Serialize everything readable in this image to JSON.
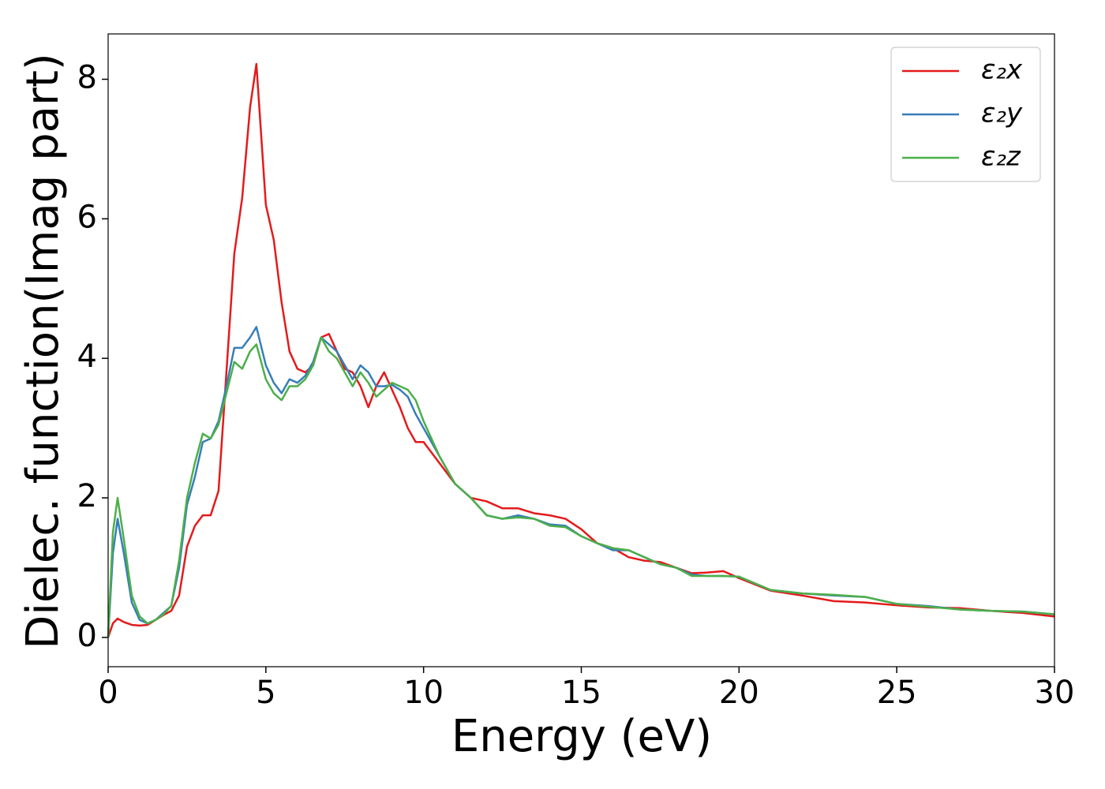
{
  "chart_data": {
    "type": "line",
    "xlabel": "Energy (eV)",
    "ylabel": "Dielec. function(Imag part)",
    "x": [
      0,
      0.15,
      0.3,
      0.5,
      0.75,
      1,
      1.25,
      1.5,
      1.75,
      2,
      2.25,
      2.5,
      2.75,
      3,
      3.25,
      3.5,
      3.75,
      4,
      4.25,
      4.5,
      4.7,
      5,
      5.25,
      5.5,
      5.75,
      6,
      6.25,
      6.5,
      6.75,
      7,
      7.25,
      7.5,
      7.75,
      8,
      8.25,
      8.5,
      8.75,
      9,
      9.25,
      9.5,
      9.75,
      10,
      10.5,
      11,
      11.5,
      12,
      12.5,
      13,
      13.5,
      14,
      14.5,
      15,
      15.5,
      16,
      16.5,
      17,
      17.5,
      18,
      18.5,
      19,
      19.5,
      20,
      21,
      22,
      23,
      24,
      25,
      26,
      27,
      28,
      29,
      30
    ],
    "series": [
      {
        "name": "ε₂x",
        "color": "#e41a1c",
        "values": [
          0,
          0.2,
          0.27,
          0.22,
          0.18,
          0.17,
          0.18,
          0.25,
          0.32,
          0.38,
          0.6,
          1.3,
          1.6,
          1.75,
          1.75,
          2.1,
          3.8,
          5.5,
          6.3,
          7.6,
          8.22,
          6.2,
          5.7,
          4.8,
          4.1,
          3.85,
          3.8,
          3.9,
          4.3,
          4.35,
          4.1,
          3.85,
          3.8,
          3.6,
          3.3,
          3.6,
          3.8,
          3.55,
          3.3,
          3.0,
          2.8,
          2.8,
          2.5,
          2.2,
          2.0,
          1.95,
          1.85,
          1.85,
          1.78,
          1.75,
          1.7,
          1.55,
          1.35,
          1.28,
          1.15,
          1.1,
          1.08,
          1.0,
          0.92,
          0.93,
          0.95,
          0.85,
          0.67,
          0.6,
          0.52,
          0.5,
          0.46,
          0.43,
          0.42,
          0.38,
          0.35,
          0.3
        ]
      },
      {
        "name": "ε₂y",
        "color": "#377eb8",
        "values": [
          0,
          1.2,
          1.7,
          1.2,
          0.5,
          0.25,
          0.2,
          0.25,
          0.35,
          0.45,
          1.0,
          1.9,
          2.3,
          2.8,
          2.85,
          3.1,
          3.6,
          4.15,
          4.15,
          4.3,
          4.45,
          3.9,
          3.65,
          3.5,
          3.7,
          3.65,
          3.75,
          3.95,
          4.3,
          4.2,
          4.1,
          3.9,
          3.7,
          3.9,
          3.8,
          3.6,
          3.6,
          3.62,
          3.55,
          3.45,
          3.2,
          3.0,
          2.6,
          2.2,
          2.0,
          1.75,
          1.7,
          1.75,
          1.7,
          1.62,
          1.6,
          1.45,
          1.35,
          1.25,
          1.25,
          1.15,
          1.05,
          1.0,
          0.9,
          0.88,
          0.88,
          0.87,
          0.68,
          0.63,
          0.6,
          0.58,
          0.48,
          0.45,
          0.4,
          0.38,
          0.37,
          0.33
        ]
      },
      {
        "name": "ε₂z",
        "color": "#4daf4a",
        "values": [
          0,
          1.5,
          2.0,
          1.4,
          0.6,
          0.3,
          0.2,
          0.25,
          0.33,
          0.45,
          1.1,
          2.0,
          2.5,
          2.92,
          2.85,
          3.05,
          3.5,
          3.95,
          3.85,
          4.1,
          4.2,
          3.7,
          3.5,
          3.4,
          3.6,
          3.6,
          3.7,
          3.9,
          4.3,
          4.1,
          4.0,
          3.8,
          3.6,
          3.8,
          3.65,
          3.45,
          3.55,
          3.65,
          3.6,
          3.55,
          3.4,
          3.1,
          2.6,
          2.2,
          2.0,
          1.75,
          1.7,
          1.72,
          1.7,
          1.6,
          1.58,
          1.45,
          1.35,
          1.28,
          1.25,
          1.15,
          1.05,
          1.0,
          0.88,
          0.88,
          0.88,
          0.87,
          0.68,
          0.63,
          0.61,
          0.58,
          0.48,
          0.44,
          0.4,
          0.38,
          0.37,
          0.33
        ]
      }
    ],
    "xlim": [
      0,
      30
    ],
    "xticks": [
      0,
      5,
      10,
      15,
      20,
      25,
      30
    ],
    "ylim": [
      -0.42,
      8.65
    ],
    "yticks": [
      0,
      2,
      4,
      6,
      8
    ],
    "legend": "upper right"
  }
}
